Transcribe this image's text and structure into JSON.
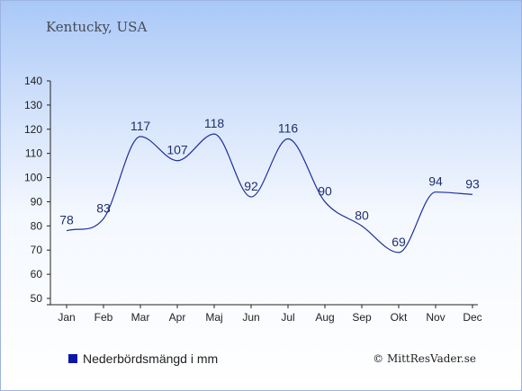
{
  "header": {
    "place": "Kentucky, USA"
  },
  "legend": {
    "label": "Nederbördsmängd i mm",
    "color": "#0b15a8"
  },
  "footer": {
    "copyright": "© MittResVader.se"
  },
  "chart_data": {
    "type": "line",
    "categories": [
      "Jan",
      "Feb",
      "Mar",
      "Apr",
      "Maj",
      "Jun",
      "Jul",
      "Aug",
      "Sep",
      "Okt",
      "Nov",
      "Dec"
    ],
    "series": [
      {
        "name": "Nederbördsmängd i mm",
        "values": [
          78,
          83,
          117,
          107,
          118,
          92,
          116,
          90,
          80,
          69,
          94,
          93
        ],
        "color": "#1f2f9e"
      }
    ],
    "ylim": [
      50,
      140
    ],
    "yticks": [
      50,
      60,
      70,
      80,
      90,
      100,
      110,
      120,
      130,
      140
    ],
    "grid": false,
    "legend_position": "bottom-left"
  }
}
